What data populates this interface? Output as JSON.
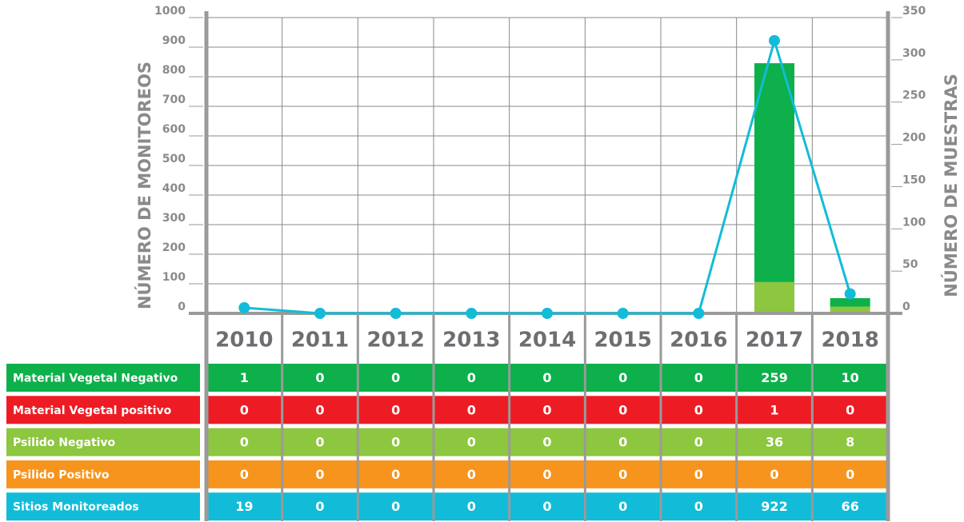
{
  "chart_data": {
    "type": "bar",
    "y_label": "NÚMERO DE MONITOREOS",
    "y2_label": "NÚMERO DE MUESTRAS",
    "categories": [
      "2010",
      "2011",
      "2012",
      "2013",
      "2014",
      "2015",
      "2016",
      "2017",
      "2018"
    ],
    "series": [
      {
        "name": "Material Vegetal Negativo",
        "color": "#0db04b",
        "axis": "y2",
        "values": [
          1,
          0,
          0,
          0,
          0,
          0,
          0,
          259,
          10
        ]
      },
      {
        "name": "Material Vegetal positivo",
        "color": "#ed1c24",
        "axis": "y2",
        "values": [
          0,
          0,
          0,
          0,
          0,
          0,
          0,
          1,
          0
        ]
      },
      {
        "name": "Psilido Negativo",
        "color": "#8dc63f",
        "axis": "y2",
        "values": [
          0,
          0,
          0,
          0,
          0,
          0,
          0,
          36,
          8
        ]
      },
      {
        "name": "Psilido Positivo",
        "color": "#f7941d",
        "axis": "y2",
        "values": [
          0,
          0,
          0,
          0,
          0,
          0,
          0,
          0,
          0
        ]
      },
      {
        "name": "Sitios Monitoreados",
        "color": "#12bcd8",
        "type": "line",
        "values": [
          19,
          0,
          0,
          0,
          0,
          0,
          0,
          922,
          66
        ]
      }
    ],
    "ylim": [
      0,
      1000
    ],
    "yticks": [
      0,
      100,
      200,
      300,
      400,
      500,
      600,
      700,
      800,
      900,
      1000
    ],
    "y2lim": [
      0,
      350
    ],
    "y2ticks": [
      0,
      50,
      100,
      150,
      200,
      250,
      300,
      350
    ],
    "grid": true
  }
}
